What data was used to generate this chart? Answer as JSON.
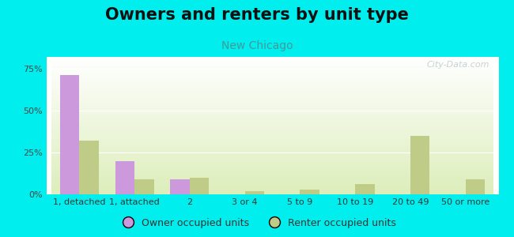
{
  "title": "Owners and renters by unit type",
  "subtitle": "New Chicago",
  "categories": [
    "1, detached",
    "1, attached",
    "2",
    "3 or 4",
    "5 to 9",
    "10 to 19",
    "20 to 49",
    "50 or more"
  ],
  "owner_values": [
    71,
    20,
    9,
    0,
    0,
    0,
    0,
    0
  ],
  "renter_values": [
    32,
    9,
    10,
    2,
    3,
    6,
    35,
    9
  ],
  "owner_color": "#cc99dd",
  "renter_color": "#bfcc88",
  "yticks": [
    0,
    25,
    50,
    75
  ],
  "ylim": [
    0,
    82
  ],
  "background_color": "#00eeee",
  "plot_bg_top": "#ffffff",
  "plot_bg_bottom": "#ddeebb",
  "legend_owner": "Owner occupied units",
  "legend_renter": "Renter occupied units",
  "bar_width": 0.35,
  "title_fontsize": 15,
  "subtitle_fontsize": 10,
  "axis_fontsize": 8,
  "legend_fontsize": 9,
  "watermark": "City-Data.com"
}
